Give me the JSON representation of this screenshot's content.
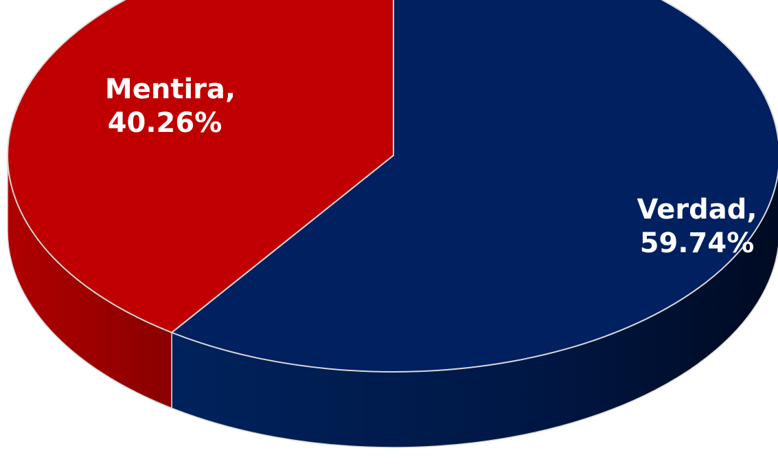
{
  "chart_data": {
    "type": "pie",
    "style": "3d",
    "title": "",
    "slices": [
      {
        "label": "Verdad",
        "value": 59.74,
        "display": "59.74%",
        "color": "#002060",
        "side_color": "#001440"
      },
      {
        "label": "Mentira",
        "value": 40.26,
        "display": "40.26%",
        "color": "#C00000",
        "side_color": "#8E0000"
      }
    ],
    "data_labels": {
      "verdad_line1": "Verdad,",
      "verdad_line2": "59.74%",
      "mentira_line1": "Mentira,",
      "mentira_line2": "40.26%"
    },
    "legend": "none",
    "start_angle": "12 o'clock, clockwise"
  }
}
